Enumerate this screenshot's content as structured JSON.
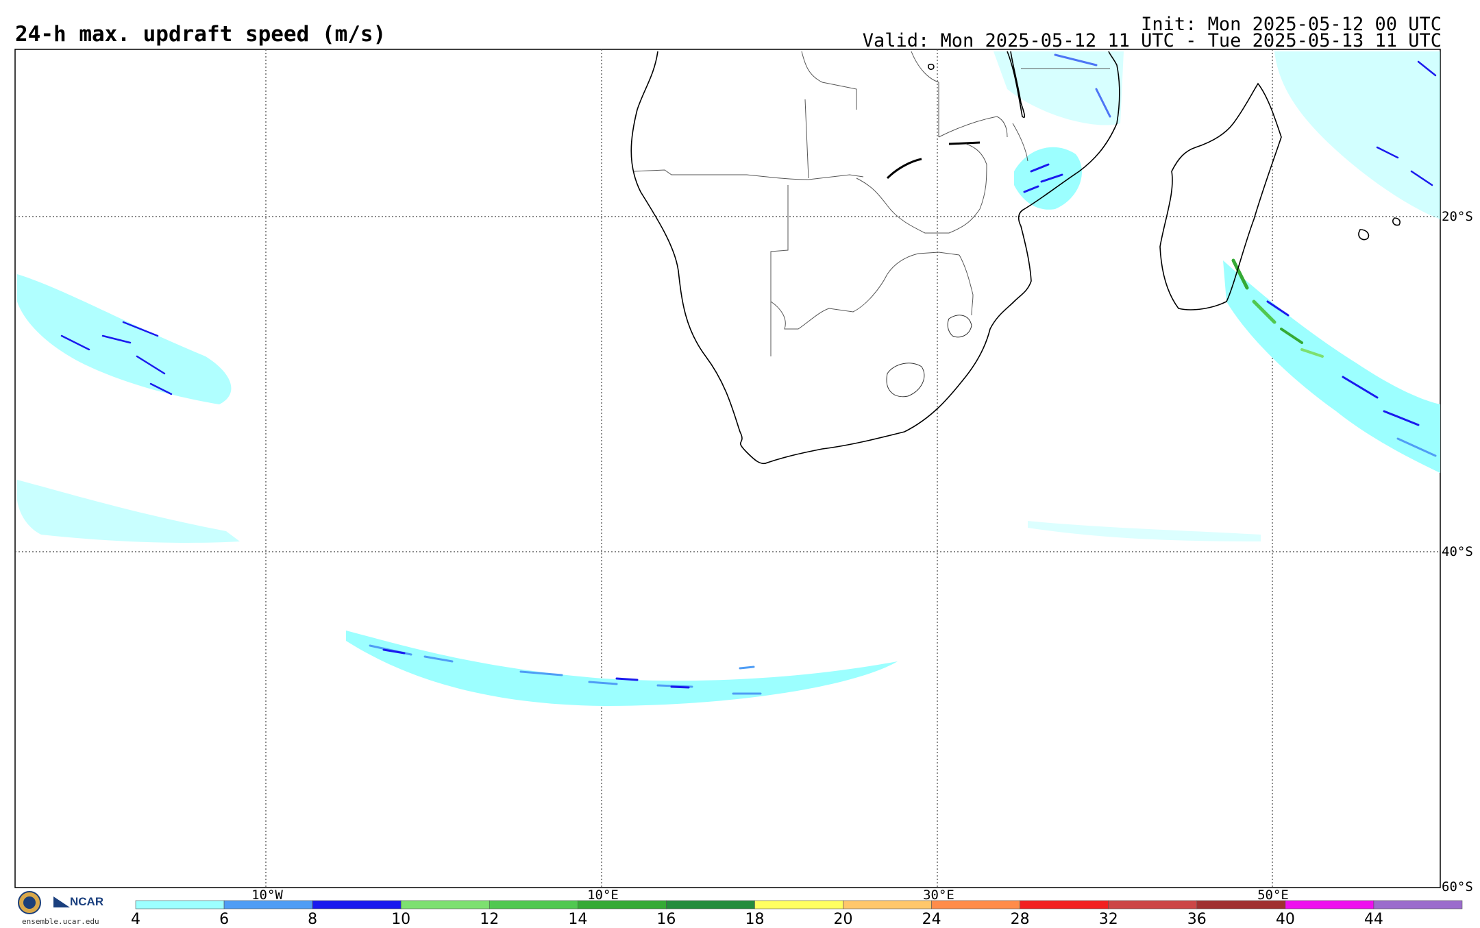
{
  "header": {
    "title": "24-h max. updraft speed (m/s)",
    "init": "Init: Mon 2025-05-12 00 UTC",
    "valid": "Valid: Mon 2025-05-12 11 UTC - Tue 2025-05-13 11 UTC"
  },
  "map": {
    "lon_labels": [
      "10°W",
      "10°E",
      "30°E",
      "50°E"
    ],
    "lat_labels": [
      "20°S",
      "40°S",
      "60°S"
    ]
  },
  "colorbar": {
    "ticks": [
      "4",
      "6",
      "8",
      "10",
      "12",
      "14",
      "16",
      "18",
      "20",
      "24",
      "28",
      "32",
      "36",
      "40",
      "44"
    ],
    "colors": [
      "#9cffff",
      "#4f9df5",
      "#1a1aee",
      "#7de070",
      "#50c850",
      "#35aa35",
      "#238c3c",
      "#ffff60",
      "#ffc76b",
      "#ff8c4a",
      "#f22020",
      "#cc4646",
      "#a03030",
      "#ee10ee",
      "#9b6ccc"
    ]
  },
  "footer": {
    "org": "NCAR",
    "nsf": "NSF",
    "url": "ensemble.ucar.edu"
  }
}
